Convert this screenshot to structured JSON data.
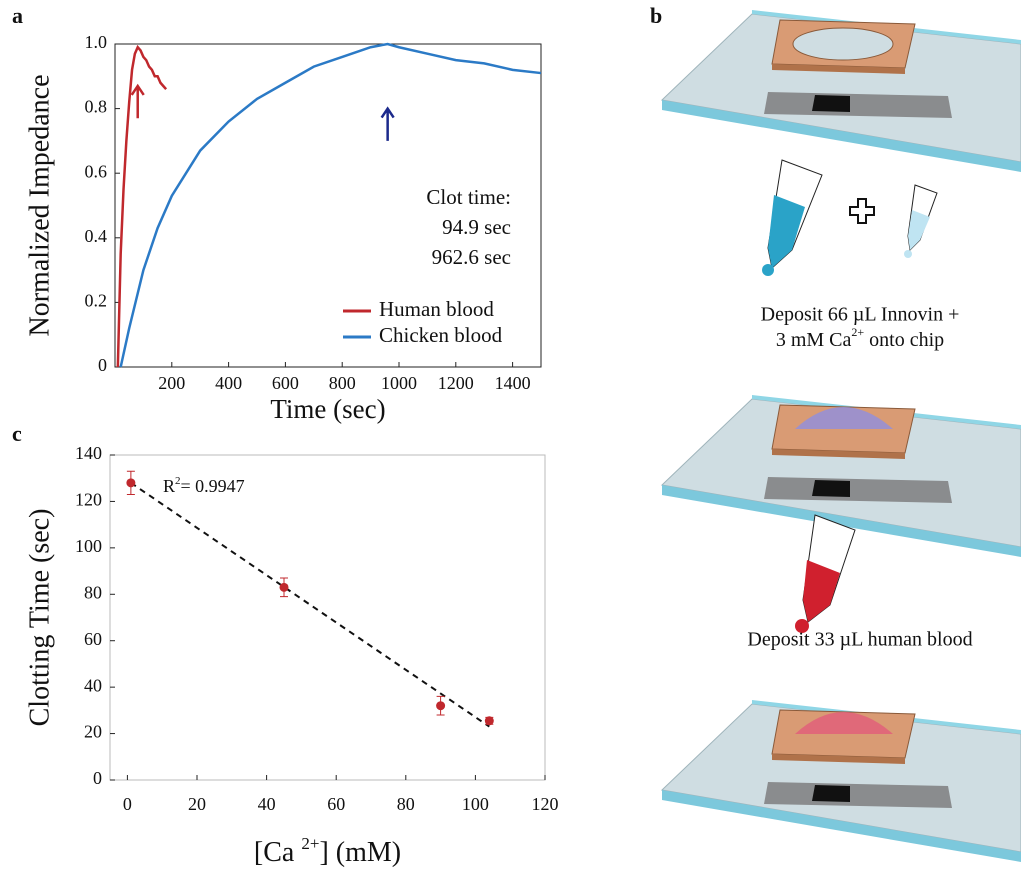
{
  "panel_labels": [
    "a",
    "b",
    "c"
  ],
  "chart_data": [
    {
      "type": "line",
      "ylabel": "Normalized Impedance",
      "xlabel": "Time (sec)",
      "xlim": [
        0,
        1500
      ],
      "ylim": [
        0,
        1
      ],
      "xticks": [
        200,
        400,
        600,
        800,
        1000,
        1200,
        1400
      ],
      "yticks": [
        0,
        0.2,
        0.4,
        0.6,
        0.8,
        {
          "value": 1,
          "label": "1.0"
        }
      ],
      "legend": "lower right",
      "series": [
        {
          "name": "Human blood",
          "color": "#c0282d",
          "x": [
            10,
            20,
            30,
            40,
            50,
            60,
            70,
            80,
            90,
            100,
            110,
            120,
            130,
            140,
            150,
            160,
            170,
            180
          ],
          "values": [
            0,
            0.35,
            0.55,
            0.7,
            0.82,
            0.92,
            0.97,
            0.99,
            0.98,
            0.96,
            0.95,
            0.93,
            0.92,
            0.9,
            0.9,
            0.88,
            0.87,
            0.86
          ]
        },
        {
          "name": "Chicken blood",
          "color": "#2b7ac6",
          "x": [
            20,
            50,
            100,
            150,
            200,
            300,
            400,
            500,
            600,
            700,
            800,
            900,
            960,
            1000,
            1100,
            1200,
            1300,
            1400,
            1500
          ],
          "values": [
            0,
            0.12,
            0.3,
            0.43,
            0.53,
            0.67,
            0.76,
            0.83,
            0.88,
            0.93,
            0.96,
            0.99,
            1,
            0.99,
            0.97,
            0.95,
            0.94,
            0.92,
            0.91
          ]
        }
      ],
      "arrows": [
        {
          "x": 80,
          "y0": 0.77,
          "y1": 0.87,
          "color": "#c0282d"
        },
        {
          "x": 960,
          "y0": 0.7,
          "y1": 0.8,
          "color": "#1c2a8c"
        }
      ],
      "annotations": [
        {
          "text": "Clot time:",
          "color": "#111111"
        },
        {
          "text": "94.9 sec",
          "color": "#c0282d"
        },
        {
          "text": "962.6 sec",
          "color": "#1c2a8c"
        }
      ]
    },
    {
      "type": "scatter",
      "ylabel": "Clotting Time (sec)",
      "xlabel": {
        "text": "[Ca ",
        "sup": "2+",
        "tail": "] (mM)"
      },
      "xlim": [
        -5,
        120
      ],
      "ylim": [
        0,
        140
      ],
      "xticks": [
        0,
        20,
        40,
        60,
        80,
        100,
        120
      ],
      "yticks": [
        0,
        20,
        40,
        60,
        80,
        100,
        120,
        140
      ],
      "series": [
        {
          "color": "#c0282d",
          "x": [
            1,
            45,
            90,
            104
          ],
          "values": [
            128,
            83,
            32,
            25.5
          ],
          "errors": [
            5,
            4,
            4,
            1.5
          ]
        }
      ],
      "trendline": {
        "x": [
          1,
          104
        ],
        "values": [
          128,
          23
        ]
      },
      "annotation": {
        "text": "R",
        "sup": "2",
        "tail": "= 0.9947"
      }
    }
  ],
  "diagram": {
    "step1": [
      "Deposit 66 µL Innovin +",
      "3 mM Ca",
      "2+",
      " onto chip"
    ],
    "step2": "Deposit 33  µL human blood"
  }
}
